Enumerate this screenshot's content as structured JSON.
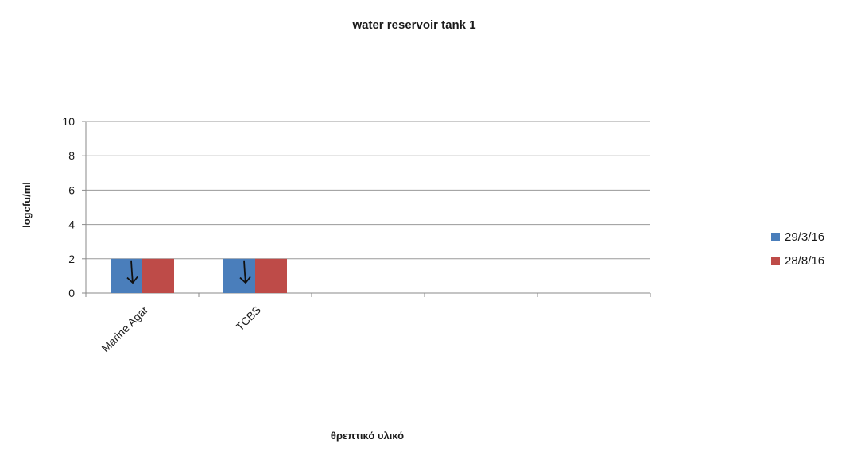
{
  "chart_data": {
    "type": "bar",
    "title": "water reservoir tank 1",
    "xlabel": "θρεπτικό υλικό",
    "ylabel": "logcfu/ml",
    "categories": [
      "Marine Agar",
      "TCBS",
      "",
      "",
      ""
    ],
    "series": [
      {
        "name": "29/3/16",
        "values": [
          2,
          2,
          null,
          null,
          null
        ],
        "color": "#4a7ebb"
      },
      {
        "name": "28/8/16",
        "values": [
          2,
          2,
          null,
          null,
          null
        ],
        "color": "#be4b48"
      }
    ],
    "ylim": [
      0,
      10
    ],
    "yticks": [
      0,
      2,
      4,
      6,
      8,
      10
    ],
    "grid": true,
    "legend_position": "right",
    "annotations": [
      {
        "type": "down-arrow",
        "category": "Marine Agar"
      },
      {
        "type": "down-arrow",
        "category": "TCBS"
      }
    ]
  }
}
